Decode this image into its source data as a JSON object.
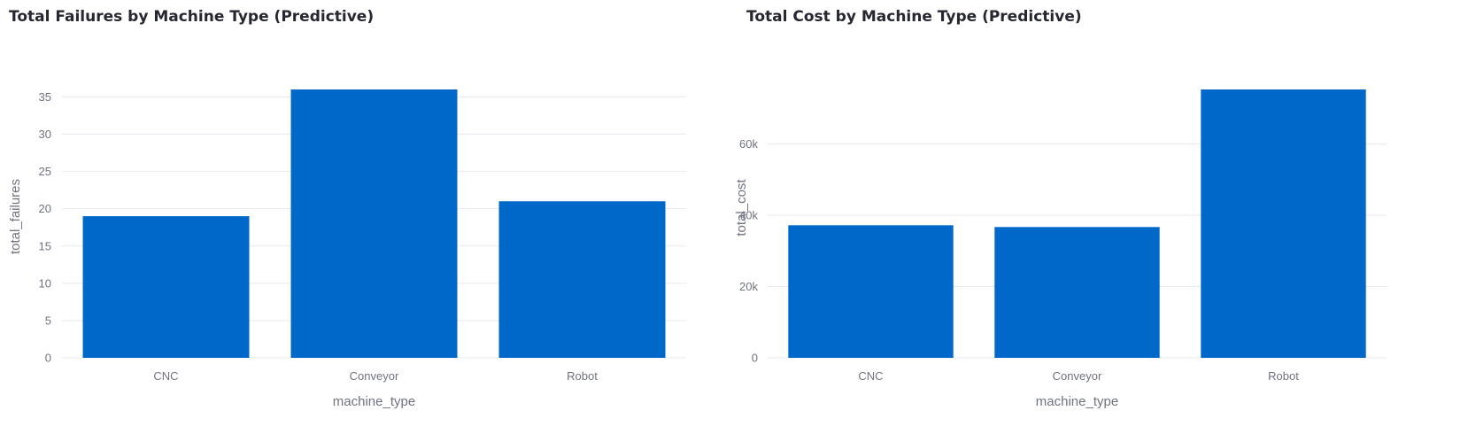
{
  "chart_data": [
    {
      "type": "bar",
      "title": "Total Failures by Machine Type (Predictive)",
      "xlabel": "machine_type",
      "ylabel": "total_failures",
      "categories": [
        "CNC",
        "Conveyor",
        "Robot"
      ],
      "values": [
        19,
        36,
        21
      ],
      "ylim": [
        0,
        36
      ],
      "yticks": [
        0,
        5,
        10,
        15,
        20,
        25,
        30,
        35
      ],
      "ytick_labels": [
        "0",
        "5",
        "10",
        "15",
        "20",
        "25",
        "30",
        "35"
      ],
      "grid": true,
      "legend": "none",
      "bar_color": "#0068c9"
    },
    {
      "type": "bar",
      "title": "Total Cost by Machine Type (Predictive)",
      "xlabel": "machine_type",
      "ylabel": "total_cost",
      "categories": [
        "CNC",
        "Conveyor",
        "Robot"
      ],
      "values": [
        37200,
        36700,
        75300
      ],
      "ylim": [
        0,
        75300
      ],
      "yticks": [
        0,
        20000,
        40000,
        60000
      ],
      "ytick_labels": [
        "0",
        "20k",
        "40k",
        "60k"
      ],
      "grid": true,
      "legend": "none",
      "bar_color": "#0068c9"
    }
  ]
}
